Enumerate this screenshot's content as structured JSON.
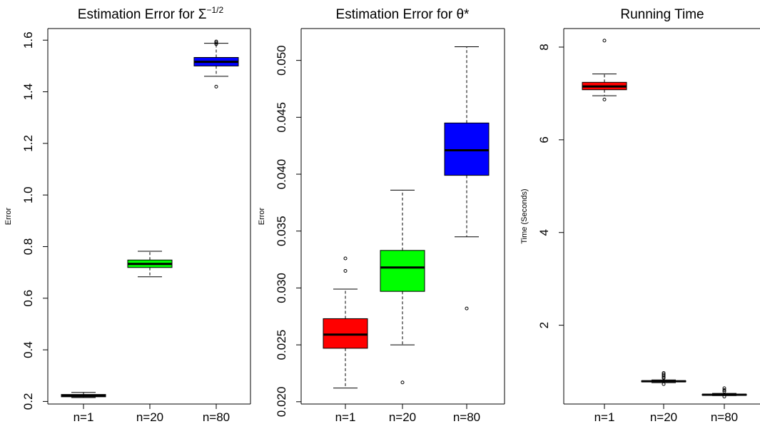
{
  "chart_data": [
    {
      "type": "box",
      "title": "Estimation Error for Σ",
      "title_superscript": "−1/2",
      "xlabel": "",
      "ylabel": "Error",
      "categories": [
        "n=1",
        "n=20",
        "n=80"
      ],
      "ylim": [
        0.19,
        1.645
      ],
      "yticks": [
        0.2,
        0.4,
        0.6,
        0.8,
        1.0,
        1.2,
        1.4,
        1.6
      ],
      "ytick_labels": [
        "0.2",
        "0.4",
        "0.6",
        "0.8",
        "1.0",
        "1.2",
        "1.4",
        "1.6"
      ],
      "grid": false,
      "boxes": [
        {
          "category": "n=1",
          "color": "#ff0000",
          "whisker_low": 0.215,
          "q1": 0.218,
          "median": 0.222,
          "q3": 0.227,
          "whisker_high": 0.235,
          "outliers": []
        },
        {
          "category": "n=20",
          "color": "#00ff00",
          "whisker_low": 0.683,
          "q1": 0.719,
          "median": 0.733,
          "q3": 0.748,
          "whisker_high": 0.782,
          "outliers": []
        },
        {
          "category": "n=80",
          "color": "#0000ff",
          "whisker_low": 1.46,
          "q1": 1.5,
          "median": 1.516,
          "q3": 1.533,
          "whisker_high": 1.588,
          "outliers": [
            1.42,
            1.585,
            1.59,
            1.595
          ]
        }
      ]
    },
    {
      "type": "box",
      "title": "Estimation Error for θ*",
      "xlabel": "",
      "ylabel": "Error",
      "categories": [
        "n=1",
        "n=20",
        "n=80"
      ],
      "ylim": [
        0.0198,
        0.0528
      ],
      "yticks": [
        0.02,
        0.025,
        0.03,
        0.035,
        0.04,
        0.045,
        0.05
      ],
      "ytick_labels": [
        "0.020",
        "0.025",
        "0.030",
        "0.035",
        "0.040",
        "0.045",
        "0.050"
      ],
      "grid": false,
      "boxes": [
        {
          "category": "n=1",
          "color": "#ff0000",
          "whisker_low": 0.0212,
          "q1": 0.0247,
          "median": 0.0259,
          "q3": 0.0273,
          "whisker_high": 0.0299,
          "outliers": [
            0.0315,
            0.0326
          ]
        },
        {
          "category": "n=20",
          "color": "#00ff00",
          "whisker_low": 0.025,
          "q1": 0.0297,
          "median": 0.0318,
          "q3": 0.0333,
          "whisker_high": 0.0386,
          "outliers": [
            0.0217
          ]
        },
        {
          "category": "n=80",
          "color": "#0000ff",
          "whisker_low": 0.0345,
          "q1": 0.0399,
          "median": 0.0421,
          "q3": 0.0445,
          "whisker_high": 0.0512,
          "outliers": [
            0.0282
          ]
        }
      ]
    },
    {
      "type": "box",
      "title": "Running Time",
      "xlabel": "",
      "ylabel": "Time (Seconds)",
      "categories": [
        "n=1",
        "n=20",
        "n=80"
      ],
      "ylim": [
        0.3,
        8.4
      ],
      "yticks": [
        2,
        4,
        6,
        8
      ],
      "ytick_labels": [
        "2",
        "4",
        "6",
        "8"
      ],
      "grid": false,
      "boxes": [
        {
          "category": "n=1",
          "color": "#ff0000",
          "whisker_low": 6.95,
          "q1": 7.08,
          "median": 7.15,
          "q3": 7.24,
          "whisker_high": 7.42,
          "outliers": [
            6.87,
            8.14
          ]
        },
        {
          "category": "n=20",
          "color": "#00ff00",
          "whisker_low": 0.76,
          "q1": 0.78,
          "median": 0.79,
          "q3": 0.8,
          "whisker_high": 0.82,
          "outliers": [
            0.73,
            0.86,
            0.88,
            0.91,
            0.94,
            0.97
          ]
        },
        {
          "category": "n=80",
          "color": "#0000ff",
          "whisker_low": 0.48,
          "q1": 0.49,
          "median": 0.5,
          "q3": 0.51,
          "whisker_high": 0.53,
          "outliers": [
            0.46,
            0.57,
            0.6,
            0.64
          ]
        }
      ]
    }
  ]
}
